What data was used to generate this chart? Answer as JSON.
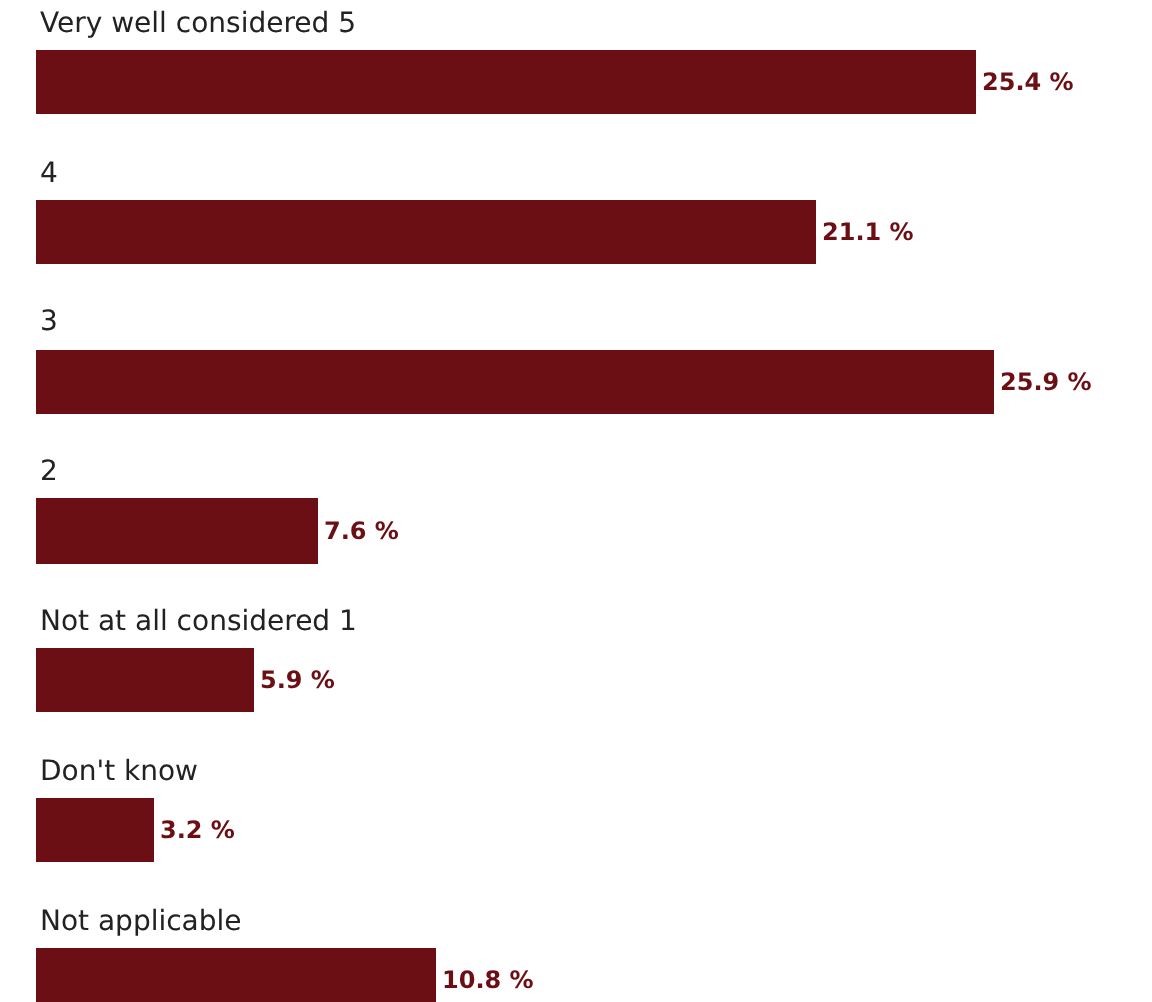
{
  "chart_data": {
    "type": "bar",
    "orientation": "horizontal",
    "categories": [
      "Very well considered 5",
      "4",
      "3",
      "2",
      "Not at all considered 1",
      "Don't know",
      "Not applicable"
    ],
    "values": [
      25.4,
      21.1,
      25.9,
      7.6,
      5.9,
      3.2,
      10.8
    ],
    "value_labels": [
      "25.4 %",
      "21.1 %",
      "25.9 %",
      "7.6 %",
      "5.9 %",
      "3.2 %",
      "10.8 %"
    ],
    "color": "#6b0f14"
  }
}
